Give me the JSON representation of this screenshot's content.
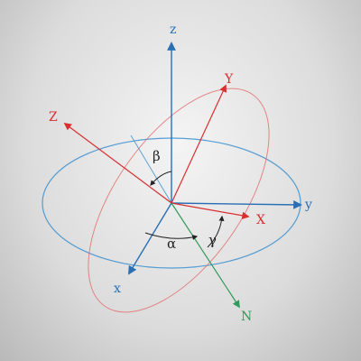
{
  "colors": {
    "fixed_frame": "#3b8fcf",
    "fixed_axis": "#2a6fb4",
    "rotated_frame": "#e34a4a",
    "rotated_axis": "#d92f2f",
    "line_of_nodes": "#2f9a5a",
    "angle_arc": "#222222"
  },
  "labels": {
    "fixed_z": "z",
    "fixed_x": "x",
    "fixed_y": "y",
    "rotated_Z": "Z",
    "rotated_X": "X",
    "rotated_Y": "Y",
    "nodes_N": "N",
    "alpha": "α",
    "beta": "β",
    "gamma": "γ"
  }
}
